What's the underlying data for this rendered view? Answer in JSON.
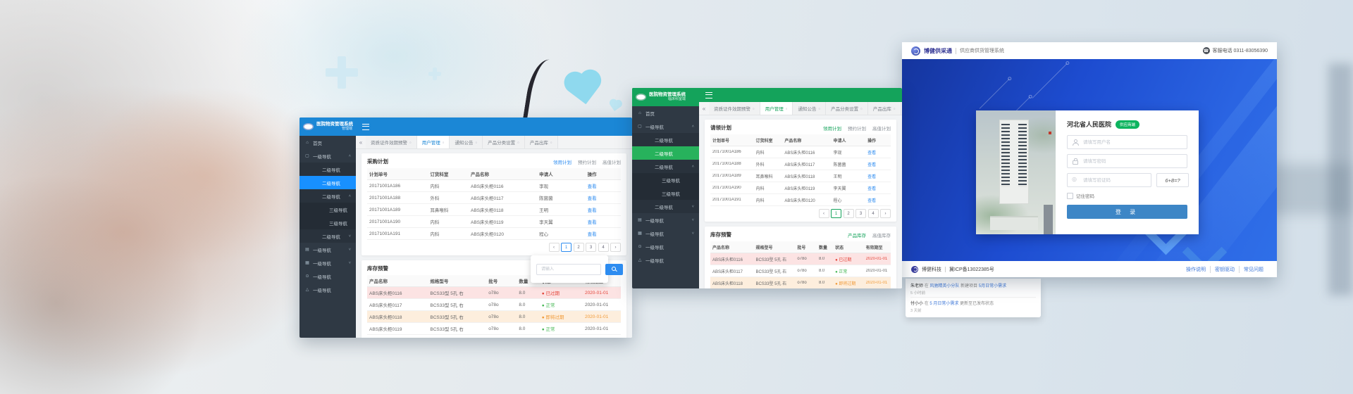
{
  "shared": {
    "collapse": "«",
    "sidebar_menu": [
      {
        "label": "首页",
        "glyph": "⌂",
        "icon": "home-icon",
        "cls": "lvl1"
      },
      {
        "label": "一级导航",
        "glyph": "▢",
        "icon": "nav-edit-icon",
        "cls": "lvl1",
        "chev": "˄"
      },
      {
        "label": "二级导航",
        "cls": "lvl2"
      },
      {
        "label": "二级导航",
        "cls": "lvl2 active"
      },
      {
        "label": "二级导航",
        "cls": "lvl2",
        "chev": "˄"
      },
      {
        "label": "三级导航",
        "cls": "lvl3"
      },
      {
        "label": "三级导航",
        "cls": "lvl3"
      },
      {
        "label": "二级导航",
        "cls": "lvl2",
        "chev": "˅"
      },
      {
        "label": "一级导航",
        "glyph": "▤",
        "icon": "nav-list-icon",
        "cls": "lvl1",
        "chev": "˅"
      },
      {
        "label": "一级导航",
        "glyph": "▦",
        "icon": "nav-grid-icon",
        "cls": "lvl1",
        "chev": "˅"
      },
      {
        "label": "一级导航",
        "glyph": "⊙",
        "icon": "nav-circle-icon",
        "cls": "lvl1"
      },
      {
        "label": "一级导航",
        "glyph": "△",
        "icon": "nav-triangle-icon",
        "cls": "lvl1"
      }
    ],
    "tabs": [
      {
        "label": "资质证件效期预警",
        "mark": "○"
      },
      {
        "label": "用户管理",
        "mark": "○",
        "cls": "active"
      },
      {
        "label": "通知公告",
        "mark": "○"
      },
      {
        "label": "产品分类设置",
        "mark": "○"
      },
      {
        "label": "产品出库",
        "mark": "○"
      }
    ],
    "plan_links": [
      {
        "label": "领用计划",
        "cls": "on"
      },
      {
        "label": "预约计划"
      },
      {
        "label": "高值计划"
      }
    ],
    "plan_headers": {
      "no": "计划单号",
      "dept": "订货科室",
      "product": "产品名称",
      "applicant": "申请人",
      "action": "操作"
    },
    "plan_rows": [
      {
        "no": "20171001A186",
        "dept": "内科",
        "product": "ABS床头柜0116",
        "applicant": "李现",
        "action": "查看"
      },
      {
        "no": "20171001A188",
        "dept": "外科",
        "product": "ABS床头柜0117",
        "applicant": "陈菌菌",
        "action": "查看"
      },
      {
        "no": "20171001A189",
        "dept": "耳鼻喉科",
        "product": "ABS床头柜0118",
        "applicant": "王明",
        "action": "查看"
      },
      {
        "no": "20171001A190",
        "dept": "内科",
        "product": "ABS床头柜0119",
        "applicant": "李天翼",
        "action": "查看"
      },
      {
        "no": "20171001A191",
        "dept": "内科",
        "product": "ABS床头柜0120",
        "applicant": "程心",
        "action": "查看"
      }
    ],
    "stock_title": "库存预警",
    "stock_links": [
      {
        "label": "产品库存",
        "cls": "on"
      },
      {
        "label": "高值库存"
      }
    ],
    "stock_headers": {
      "product": "产品名称",
      "spec": "规格型号",
      "batch": "批号",
      "qty": "数量",
      "state": "状态",
      "date": "有效期至"
    },
    "stock_rows": [
      {
        "product": "ABS床头柜0116",
        "spec": "BCS33型 5孔 右",
        "batch": "o78o",
        "qty": "8.0",
        "state": "● 已过期",
        "date": "2020-01-01",
        "tone": "expired",
        "datecls": "expired",
        "rowcls": "row-expired"
      },
      {
        "product": "ABS床头柜0117",
        "spec": "BCS33型 5孔 右",
        "batch": "o78o",
        "qty": "8.0",
        "state": "● 正常",
        "date": "2020-01-01",
        "tone": "normal"
      },
      {
        "product": "ABS床头柜0118",
        "spec": "BCS33型 5孔 右",
        "batch": "o78o",
        "qty": "8.0",
        "state": "● 即将过期",
        "date": "2020-01-01",
        "tone": "warning",
        "datecls": "warning",
        "rowcls": "row-warning"
      },
      {
        "product": "ABS床头柜0119",
        "spec": "BCS33型 5孔 右",
        "batch": "o78o",
        "qty": "8.0",
        "state": "● 正常",
        "date": "2020-01-01",
        "tone": "normal"
      },
      {
        "product": "ABS床头柜0120",
        "spec": "BCS33型 5孔 右",
        "batch": "o78o",
        "qty": "8.0",
        "state": "● 正常",
        "date": "2020-01-01",
        "tone": "normal"
      }
    ],
    "pagination": [
      {
        "label": "‹"
      },
      {
        "label": "1",
        "cls": "on"
      },
      {
        "label": "2"
      },
      {
        "label": "3"
      },
      {
        "label": "4"
      },
      {
        "label": "›"
      }
    ]
  },
  "admin": {
    "brand": "医院物资管理系统",
    "edition": "管理端",
    "plan_title": "采购计划",
    "accent": "#1b87d6"
  },
  "clinical": {
    "brand": "医院物资管理系统",
    "edition": "临床科室端",
    "plan_title": "请领计划",
    "accent": "#14a35b"
  },
  "login": {
    "brand": "博健供采通",
    "product": "供应商供货管理系统",
    "service": "客服电话 0311-83056390",
    "hospital": "河北省人民医院",
    "badge": "供应商端",
    "username_ph": "请填写用户名",
    "password_ph": "请填写密码",
    "captcha_ph": "请填写验证码",
    "captcha": "6+8=?",
    "remember": "记住密码",
    "submit": "登 录",
    "footer_brand": "博健科技",
    "footer_icp": "冀ICP备13022385号",
    "footer_links": [
      {
        "label": "操作说明"
      },
      {
        "label": "密钥驱动"
      },
      {
        "label": "常见问题"
      }
    ],
    "accent": "#2a5fe0"
  },
  "feed": {
    "items": [
      {
        "name": "朱老师",
        "mid1": "在",
        "link1": "风驰精英小分队",
        "mid2": "新建项目",
        "link2": "5月日常小需求",
        "time": "5 小时前"
      },
      {
        "name": "付小小",
        "mid1": "在",
        "link1": "5 月日常小需求",
        "mid2": "更新至已发布状态",
        "link2": "",
        "time": "3 天前"
      }
    ]
  },
  "widget": {
    "placeholder": "请输入"
  }
}
